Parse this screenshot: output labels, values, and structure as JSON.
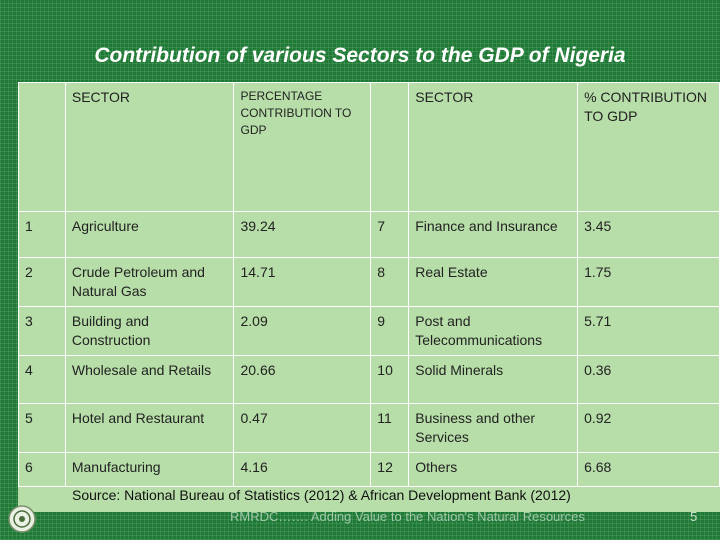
{
  "title": "Contribution of various Sectors to the GDP of Nigeria",
  "headers": {
    "no_left": "",
    "sector_left": "SECTOR",
    "pct_left": "PERCENTAGE CONTRIBUTION TO GDP",
    "no_right": "",
    "sector_right": "SECTOR",
    "pct_right": "% CONTRIBUTION TO GDP"
  },
  "rows": [
    {
      "n1": "1",
      "s1": "Agriculture",
      "p1": "39.24",
      "n2": "7",
      "s2": "Finance and Insurance",
      "p2": "3.45"
    },
    {
      "n1": "2",
      "s1": "Crude Petroleum and Natural Gas",
      "p1": "14.71",
      "n2": "8",
      "s2": "Real Estate",
      "p2": "1.75"
    },
    {
      "n1": "3",
      "s1": "Building and Construction",
      "p1": "2.09",
      "n2": "9",
      "s2": "Post and Telecommunications",
      "p2": "5.71"
    },
    {
      "n1": "4",
      "s1": "Wholesale and Retails",
      "p1": "20.66",
      "n2": "10",
      "s2": "Solid Minerals",
      "p2": "0.36"
    },
    {
      "n1": "5",
      "s1": "Hotel and Restaurant",
      "p1": "0.47",
      "n2": "11",
      "s2": "Business and other Services",
      "p2": "0.92"
    },
    {
      "n1": "6",
      "s1": "Manufacturing",
      "p1": "4.16",
      "n2": "12",
      "s2": "Others",
      "p2": "6.68"
    }
  ],
  "source": "Source: National Bureau of Statistics (2012) & African Development Bank (2012)",
  "footer_text": "RMRDC……. Adding Value to the Nation's Natural Resources",
  "slide_number": "5",
  "colors": {
    "background": "#1f7a35",
    "table": "#b7dea8",
    "highlight": "#c00000"
  }
}
